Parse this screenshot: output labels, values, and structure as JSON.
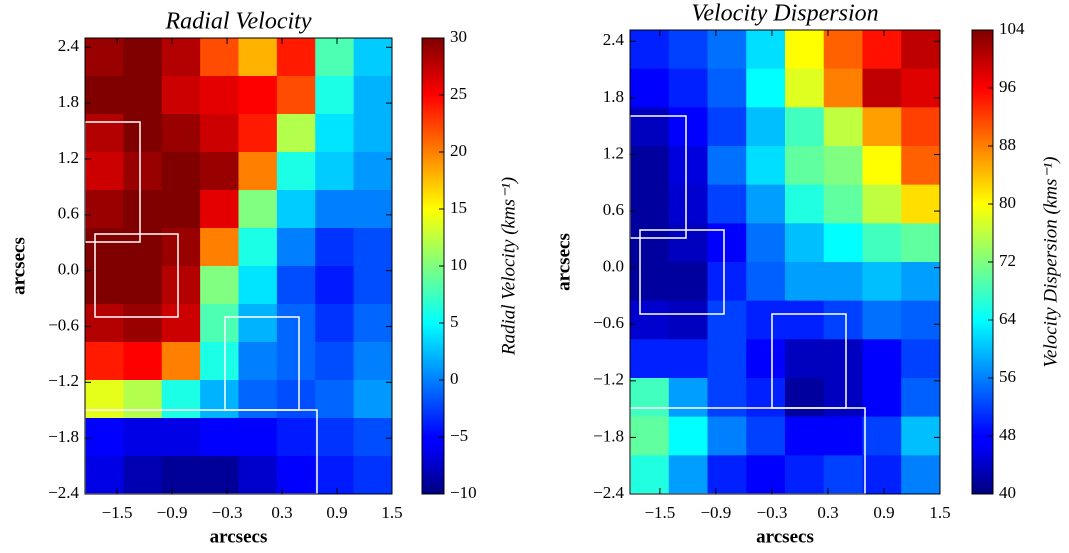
{
  "chart_data": [
    {
      "type": "heatmap",
      "title": "Radial Velocity",
      "xlabel": "arcsecs",
      "ylabel": "arcsecs",
      "colorbar_label": "Radial Velocity (kms⁻¹)",
      "colormap": "jet",
      "xlim": [
        -1.85,
        1.5
      ],
      "ylim": [
        -2.4,
        2.5
      ],
      "xticks": [
        {
          "value": -1.5,
          "label": "−1.5"
        },
        {
          "value": -0.9,
          "label": "−0.9"
        },
        {
          "value": -0.3,
          "label": "−0.3"
        },
        0.3,
        0.9,
        1.5
      ],
      "yticks": [
        {
          "value": -2.4,
          "label": "−2.4"
        },
        {
          "value": -1.8,
          "label": "−1.8"
        },
        {
          "value": -1.2,
          "label": "−1.2"
        },
        {
          "value": -0.6,
          "label": "−0.6"
        },
        {
          "value": 0,
          "label": "0.0"
        },
        0.6,
        1.2,
        1.8,
        2.4
      ],
      "clim": [
        -10,
        30
      ],
      "cticks": [
        {
          "value": -10,
          "label": "−10"
        },
        {
          "value": -5,
          "label": "−5"
        },
        0,
        5,
        10,
        15,
        20,
        25,
        30
      ],
      "values": [
        [
          29,
          30,
          28,
          22,
          18,
          24,
          8,
          3
        ],
        [
          30,
          30,
          27,
          26,
          25,
          22,
          6,
          2
        ],
        [
          28,
          30,
          29,
          27,
          24,
          12,
          4,
          2
        ],
        [
          27,
          29,
          30,
          29,
          20,
          6,
          3,
          1
        ],
        [
          29,
          30,
          30,
          26,
          10,
          3,
          0,
          0
        ],
        [
          30,
          30,
          29,
          20,
          6,
          0,
          -3,
          -2
        ],
        [
          30,
          30,
          28,
          10,
          4,
          -2,
          -4,
          -2
        ],
        [
          28,
          29,
          27,
          8,
          2,
          -1,
          -3,
          -1
        ],
        [
          24,
          25,
          20,
          6,
          0,
          -1,
          -2,
          0
        ],
        [
          14,
          12,
          6,
          2,
          -1,
          -2,
          -1,
          1
        ],
        [
          -5,
          -6,
          -6,
          -5,
          -5,
          -4,
          -3,
          -2
        ],
        [
          -6,
          -8,
          -9,
          -9,
          -7,
          -5,
          -4,
          -3
        ]
      ]
    },
    {
      "type": "heatmap",
      "title": "Velocity Dispersion",
      "xlabel": "arcsecs",
      "ylabel": "arcsecs",
      "colorbar_label": "Velocity Dispersion (kms⁻¹)",
      "colormap": "jet",
      "xlim": [
        -1.82,
        1.5
      ],
      "ylim": [
        -2.4,
        2.52
      ],
      "xticks": [
        {
          "value": -1.5,
          "label": "−1.5"
        },
        {
          "value": -0.9,
          "label": "−0.9"
        },
        {
          "value": -0.3,
          "label": "−0.3"
        },
        0.3,
        0.9,
        1.5
      ],
      "yticks": [
        {
          "value": -2.4,
          "label": "−2.4"
        },
        {
          "value": -1.8,
          "label": "−1.8"
        },
        {
          "value": -1.2,
          "label": "−1.2"
        },
        {
          "value": -0.6,
          "label": "−0.6"
        },
        {
          "value": 0,
          "label": "0.0"
        },
        0.6,
        1.2,
        1.8,
        2.4
      ],
      "clim": [
        40,
        104
      ],
      "cticks": [
        40,
        48,
        56,
        64,
        72,
        80,
        88,
        96,
        104
      ],
      "values": [
        [
          50,
          52,
          55,
          62,
          80,
          90,
          95,
          100
        ],
        [
          48,
          50,
          54,
          64,
          78,
          88,
          100,
          98
        ],
        [
          44,
          48,
          52,
          60,
          68,
          76,
          86,
          92
        ],
        [
          42,
          46,
          55,
          62,
          70,
          72,
          80,
          90
        ],
        [
          42,
          45,
          52,
          58,
          66,
          70,
          76,
          82
        ],
        [
          42,
          44,
          48,
          55,
          60,
          64,
          68,
          70
        ],
        [
          42,
          42,
          50,
          54,
          58,
          58,
          60,
          58
        ],
        [
          45,
          44,
          52,
          50,
          50,
          52,
          55,
          54
        ],
        [
          50,
          50,
          52,
          48,
          44,
          44,
          48,
          52
        ],
        [
          68,
          58,
          52,
          50,
          42,
          44,
          48,
          54
        ],
        [
          70,
          64,
          56,
          52,
          48,
          48,
          52,
          60
        ],
        [
          66,
          58,
          50,
          48,
          50,
          52,
          50,
          56
        ]
      ]
    }
  ]
}
